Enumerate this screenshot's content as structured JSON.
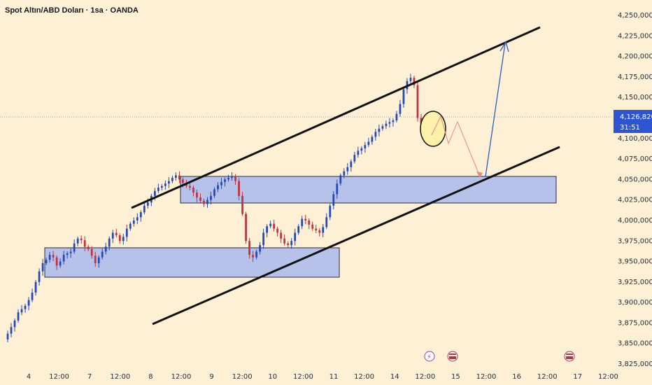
{
  "chart_data": {
    "type": "candlestick",
    "title": "Spot Altın/ABD Doları · 1sa · OANDA",
    "y_axis": {
      "ticks": [
        "4,250,000",
        "4,225,000",
        "4,200,000",
        "4,175,000",
        "4,150,000",
        "4,126,820",
        "4,100,000",
        "4,075,000",
        "4,050,000",
        "4,025,000",
        "4,000,000",
        "3,975,000",
        "3,950,000",
        "3,925,000",
        "3,900,000",
        "3,875,000",
        "3,850,000",
        "3,825,000"
      ],
      "ylim": [
        3825000,
        4262000
      ]
    },
    "x_axis": {
      "ticks": [
        "4",
        "12:00",
        "7",
        "12:00",
        "8",
        "12:00",
        "9",
        "12:00",
        "10",
        "12:00",
        "11",
        "12:00",
        "14",
        "12:00",
        "15",
        "12:00",
        "16",
        "12:00",
        "17",
        "12:00"
      ]
    },
    "last_price": {
      "value": "4,126,820",
      "countdown": "31:51",
      "raw": 4126820
    },
    "colors": {
      "up": "#2448b8",
      "down": "#c0313f",
      "background": "#fdf0d5",
      "zone": "#b7c2ea",
      "price_label": "#2d55d2",
      "target_arrow": "#2c5bc7",
      "path": "#e58a8a",
      "circle": "#fdf0a8"
    },
    "price_path": [
      3855000,
      3862000,
      3870000,
      3878000,
      3888000,
      3892000,
      3896000,
      3903000,
      3912000,
      3925000,
      3938000,
      3948000,
      3952000,
      3958000,
      3955000,
      3945000,
      3950000,
      3958000,
      3960000,
      3962000,
      3972000,
      3978000,
      3976000,
      3968000,
      3965000,
      3957000,
      3948000,
      3955000,
      3962000,
      3968000,
      3978000,
      3985000,
      3982000,
      3975000,
      3980000,
      3990000,
      3996000,
      4000000,
      4004000,
      4010000,
      4018000,
      4022000,
      4030000,
      4036000,
      4040000,
      4042000,
      4045000,
      4048000,
      4052000,
      4055000,
      4050000,
      4046000,
      4042000,
      4040000,
      4034000,
      4028000,
      4024000,
      4020000,
      4025000,
      4030000,
      4038000,
      4043000,
      4047000,
      4050000,
      4052000,
      4054000,
      4048000,
      4030000,
      4008000,
      3975000,
      3958000,
      3955000,
      3962000,
      3970000,
      3985000,
      3993000,
      3996000,
      3990000,
      3985000,
      3978000,
      3972000,
      3970000,
      3975000,
      3985000,
      3993000,
      4002000,
      4000000,
      3995000,
      3990000,
      3988000,
      3985000,
      3992000,
      4004000,
      4018000,
      4032000,
      4045000,
      4055000,
      4060000,
      4065000,
      4072000,
      4080000,
      4085000,
      4088000,
      4092000,
      4096000,
      4102000,
      4108000,
      4112000,
      4115000,
      4118000,
      4120000,
      4122000,
      4130000,
      4142000,
      4160000,
      4170000,
      4174000,
      4165000,
      4125000,
      4118000,
      4120000,
      4126820
    ],
    "zones": [
      {
        "y_top": 4054000,
        "y_bottom": 4023000
      },
      {
        "y_top": 3970000,
        "y_bottom": 3932000
      }
    ],
    "date_labels": [
      "4",
      "7",
      "8",
      "9",
      "10",
      "11",
      "14",
      "15",
      "16",
      "17"
    ]
  }
}
